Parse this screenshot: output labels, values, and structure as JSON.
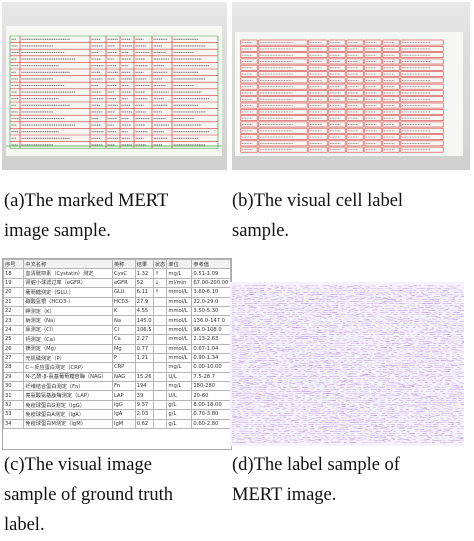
{
  "captions": {
    "a": [
      "(a)The marked MERT",
      "image sample."
    ],
    "b": [
      "(b)The visual cell label",
      "sample."
    ],
    "c": [
      "(c)The visual image",
      "sample of ground truth",
      "label."
    ],
    "d": [
      "(d)The label sample of",
      "MERT image."
    ]
  },
  "ground_truth_table": {
    "headers": [
      "序号",
      "中文名称",
      "英称",
      "结果",
      "状态",
      "单位",
      "参考值"
    ],
    "rows": [
      [
        "18",
        "血清胱抑素（Cystatin）测定",
        "CysC",
        "1.32",
        "↑",
        "mg/L",
        "0.51-1.09"
      ],
      [
        "19",
        "肾脏小球滤过率（eGFR）",
        "eGFR",
        "52",
        "↓",
        "ml/min",
        "67.00-200.00"
      ],
      [
        "20",
        "葡萄糖测定（GLU.）",
        "GLU.",
        "6.11",
        "↑",
        "mmol/L",
        "3.60-6.10"
      ],
      [
        "21",
        "碳酸氢根（HCO3-）",
        "HC03-",
        "27.9",
        "",
        "mmol/L",
        "22.0-29.0"
      ],
      [
        "22",
        "钾测定（K）",
        "K",
        "4.55",
        "",
        "mmol/L",
        "3.50-5.30"
      ],
      [
        "23",
        "钠测定（Na）",
        "Na",
        "145.0",
        "",
        "mmol/L",
        "136.0-147.0"
      ],
      [
        "24",
        "氯测定（Cl）",
        "Cl",
        "106.5",
        "",
        "mmol/L",
        "96.0-108.0"
      ],
      [
        "25",
        "钙测定（Ca）",
        "Ca",
        "2.27",
        "",
        "mmol/L",
        "2.13-2.63"
      ],
      [
        "26",
        "镁测定（Mg）",
        "Mg",
        "0.77",
        "",
        "mmol/L",
        "0.67-1.04"
      ],
      [
        "27",
        "无机磷测定（P）",
        "P",
        "1.21",
        "",
        "mmol/L",
        "0.90-1.34"
      ],
      [
        "28",
        "C－反应蛋白测定（CRP）",
        "CRP",
        "",
        "",
        "mg/L",
        "0.00-10.00"
      ],
      [
        "29",
        "N-乙酰-β-氨基葡萄糖苷酶（NAG）",
        "NAG",
        "15.26",
        "",
        "U/L",
        "7.5-28.7"
      ],
      [
        "30",
        "纤维结合蛋白测定（Fn）",
        "Fn",
        "194",
        "",
        "mg/L",
        "180-280"
      ],
      [
        "31",
        "亮氨酸氨基肽酶测定（LAP）",
        "LAP",
        "39",
        "",
        "U/L",
        "20-60"
      ],
      [
        "32",
        "免疫球蛋白G测定（IgG）",
        "IgG",
        "9.37",
        "",
        "g/L",
        "8.00-18.00"
      ],
      [
        "33",
        "免疫球蛋白A测定（IgA）",
        "IgA",
        "2.03",
        "",
        "g/L",
        "0.70-3.80"
      ],
      [
        "34",
        "免疫球蛋白M测定（IgM）",
        "IgM",
        "0.62",
        "",
        "g/L",
        "0.60-2.80"
      ]
    ]
  },
  "colors": {
    "mark_red": "#d63a3a",
    "mark_green": "#3fae3f",
    "label_purple": "#a46fd0"
  }
}
